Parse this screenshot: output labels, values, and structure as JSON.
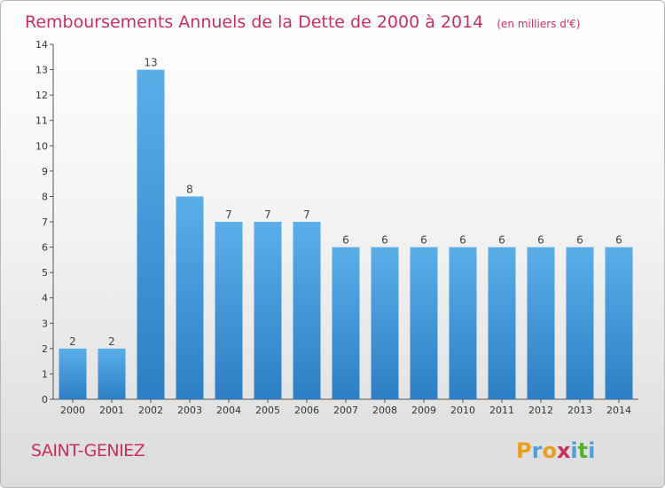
{
  "chart_data": {
    "type": "bar",
    "title": "Remboursements Annuels de la Dette de 2000 à 2014",
    "subtitle": "(en milliers d'€)",
    "categories": [
      "2000",
      "2001",
      "2002",
      "2003",
      "2004",
      "2005",
      "2006",
      "2007",
      "2008",
      "2009",
      "2010",
      "2011",
      "2012",
      "2013",
      "2014"
    ],
    "values": [
      2,
      2,
      13,
      8,
      7,
      7,
      7,
      6,
      6,
      6,
      6,
      6,
      6,
      6,
      6
    ],
    "ylim": [
      0,
      14
    ],
    "yticks": [
      0,
      1,
      2,
      3,
      4,
      5,
      6,
      7,
      8,
      9,
      10,
      11,
      12,
      13,
      14
    ],
    "xlabel": "",
    "ylabel": "",
    "bar_color": "#4a9fdc",
    "grid": false
  },
  "commune": "SAINT-GENIEZ",
  "brand": {
    "letters": [
      "P",
      "r",
      "o",
      "x",
      "i",
      "t",
      "i"
    ],
    "colors": [
      "#e8a020",
      "#4a9fdc",
      "#e8a020",
      "#c8305c",
      "#4a9fdc",
      "#58b030",
      "#4a9fdc"
    ]
  }
}
